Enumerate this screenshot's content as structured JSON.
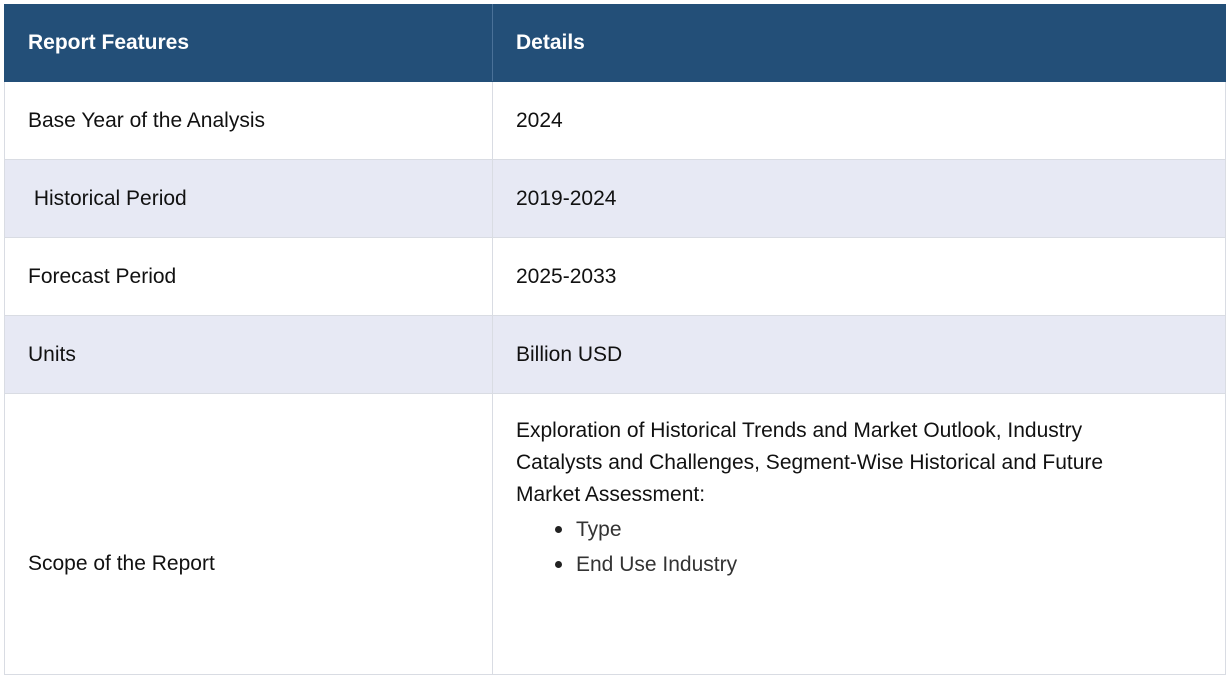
{
  "table": {
    "headers": {
      "features": "Report Features",
      "details": "Details"
    },
    "rows": [
      {
        "feature": "Base Year of the Analysis",
        "detail": "2024"
      },
      {
        "feature": " Historical Period",
        "detail": "2019-2024"
      },
      {
        "feature": "Forecast Period",
        "detail": "2025-2033"
      },
      {
        "feature": "Units",
        "detail": "Billion USD"
      }
    ],
    "scope": {
      "feature": "Scope of the Report",
      "text": "Exploration of Historical Trends and Market Outlook, Industry Catalysts and Challenges, Segment-Wise Historical and Future Market Assessment:",
      "items": [
        "Type",
        "End Use Industry"
      ]
    }
  },
  "colors": {
    "header_bg": "#234f78",
    "alt_row_bg": "#e7e9f4",
    "border": "#d9dce3"
  }
}
